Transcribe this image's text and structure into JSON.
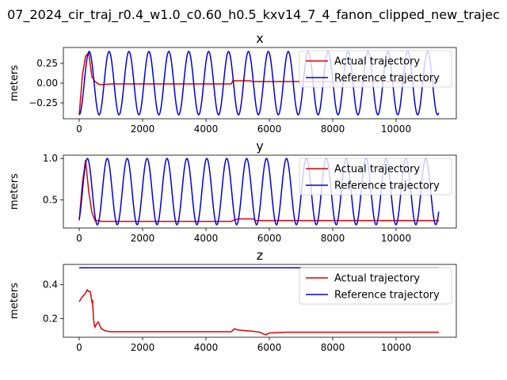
{
  "figure": {
    "suptitle": "07_2024_cir_traj_r0.4_w1.0_c0.60_h0.5_kxv14_7_4_fanon_clipped_new_trajec"
  },
  "colors": {
    "actual": "#e00000",
    "reference": "#0000e0"
  },
  "chart_data": [
    {
      "type": "line",
      "title": "x",
      "xlabel": "",
      "ylabel": "meters",
      "xlim": [
        -500,
        11900
      ],
      "ylim": [
        -0.45,
        0.45
      ],
      "xticks": [
        0,
        2000,
        4000,
        6000,
        8000,
        10000
      ],
      "xtick_labels": [
        "0",
        "2000",
        "4000",
        "6000",
        "8000",
        "10000"
      ],
      "yticks": [
        -0.25,
        0.0,
        0.25
      ],
      "ytick_labels": [
        "−0.25",
        "0.00",
        "0.25"
      ],
      "legend": "upper right",
      "series": [
        {
          "name": "Actual trajectory",
          "color": "#e00000",
          "x": [
            0,
            100,
            200,
            300,
            400,
            500,
            600,
            700,
            1000,
            2000,
            3000,
            4000,
            4800,
            4850,
            5000,
            5400,
            5450,
            6000,
            7000,
            8000,
            9000,
            10000,
            11350
          ],
          "y": [
            -0.4,
            0.1,
            0.34,
            0.38,
            0.08,
            0.02,
            -0.01,
            -0.02,
            -0.01,
            -0.01,
            -0.01,
            -0.01,
            -0.01,
            0.03,
            0.03,
            0.03,
            0.02,
            0.02,
            0.02,
            0.02,
            0.02,
            0.02,
            0.02
          ]
        },
        {
          "name": "Reference trajectory",
          "color": "#0000e0",
          "function": "sin",
          "center": 0.0,
          "amplitude": 0.4,
          "period": 628.3,
          "phase": -1.5708,
          "x_range": [
            0,
            11350
          ]
        }
      ]
    },
    {
      "type": "line",
      "title": "y",
      "xlabel": "",
      "ylabel": "meters",
      "xlim": [
        -500,
        11900
      ],
      "ylim": [
        0.16,
        1.04
      ],
      "xticks": [
        0,
        2000,
        4000,
        6000,
        8000,
        10000
      ],
      "xtick_labels": [
        "0",
        "2000",
        "4000",
        "6000",
        "8000",
        "10000"
      ],
      "yticks": [
        0.5,
        1.0
      ],
      "ytick_labels": [
        "0.5",
        "1.0"
      ],
      "legend": "upper right",
      "series": [
        {
          "name": "Actual trajectory",
          "color": "#e00000",
          "x": [
            0,
            100,
            200,
            300,
            400,
            500,
            600,
            700,
            1000,
            2000,
            3000,
            4000,
            4800,
            4850,
            5000,
            5500,
            5550,
            6000,
            7000,
            8000,
            9000,
            10000,
            11350
          ],
          "y": [
            0.25,
            0.7,
            0.98,
            0.6,
            0.35,
            0.25,
            0.25,
            0.24,
            0.24,
            0.24,
            0.24,
            0.24,
            0.24,
            0.25,
            0.27,
            0.27,
            0.25,
            0.25,
            0.25,
            0.25,
            0.25,
            0.25,
            0.25
          ]
        },
        {
          "name": "Reference trajectory",
          "color": "#0000e0",
          "function": "sin",
          "center": 0.6,
          "amplitude": 0.4,
          "period": 628.3,
          "phase": -1.0,
          "x_range": [
            0,
            11350
          ]
        }
      ]
    },
    {
      "type": "line",
      "title": "z",
      "xlabel": "",
      "ylabel": "meters",
      "xlim": [
        -500,
        11900
      ],
      "ylim": [
        0.09,
        0.52
      ],
      "xticks": [
        0,
        2000,
        4000,
        6000,
        8000,
        10000
      ],
      "xtick_labels": [
        "0",
        "2000",
        "4000",
        "6000",
        "8000",
        "10000"
      ],
      "yticks": [
        0.2,
        0.4
      ],
      "ytick_labels": [
        "0.2",
        "0.4"
      ],
      "legend": "upper right",
      "series": [
        {
          "name": "Actual trajectory",
          "color": "#e00000",
          "x": [
            0,
            100,
            200,
            250,
            300,
            350,
            400,
            420,
            450,
            480,
            500,
            550,
            600,
            650,
            700,
            800,
            900,
            1000,
            1500,
            2000,
            3000,
            4000,
            4800,
            4900,
            5000,
            5200,
            5500,
            5700,
            5800,
            5900,
            6000,
            6500,
            7000,
            8000,
            9000,
            10000,
            11350
          ],
          "y": [
            0.3,
            0.33,
            0.35,
            0.37,
            0.36,
            0.36,
            0.3,
            0.31,
            0.2,
            0.16,
            0.15,
            0.17,
            0.18,
            0.16,
            0.14,
            0.13,
            0.125,
            0.123,
            0.123,
            0.123,
            0.123,
            0.123,
            0.123,
            0.14,
            0.133,
            0.13,
            0.125,
            0.12,
            0.11,
            0.105,
            0.115,
            0.12,
            0.12,
            0.12,
            0.12,
            0.12,
            0.12
          ]
        },
        {
          "name": "Reference trajectory",
          "color": "#0000e0",
          "x": [
            0,
            11350
          ],
          "y": [
            0.5,
            0.5
          ]
        }
      ]
    }
  ]
}
